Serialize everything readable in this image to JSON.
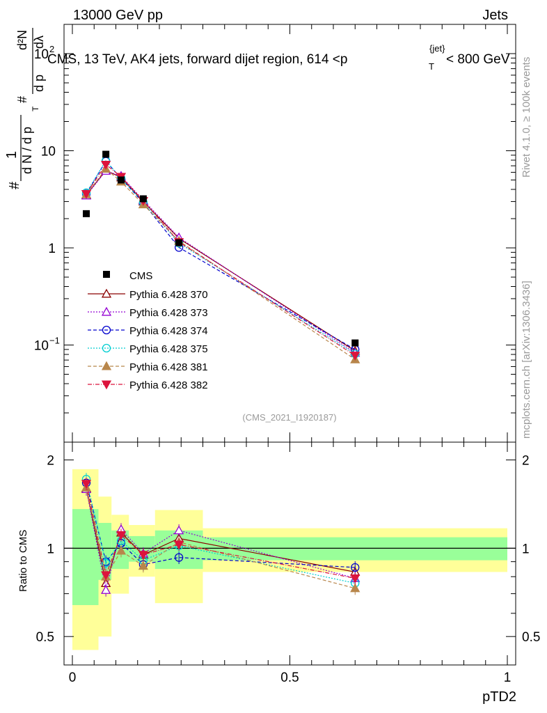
{
  "header": {
    "left": "13000 GeV pp",
    "right": "Jets",
    "title": "CMS, 13 TeV, AK4 jets, forward dijet region, 614 <p",
    "title_sub": "T",
    "title_sup": "{jet}",
    "title_end": "< 800 GeV"
  },
  "side": {
    "rivet": "Rivet 4.1.0, ≥ 100k events",
    "mcplots": "mcplots.cern.ch [arXiv:1306.3436]"
  },
  "watermark": "(CMS_2021_I1920187)",
  "ylabel_main": {
    "hash1": "#",
    "one": "1",
    "dn": "d N / d p",
    "t_sub": "T",
    "hash2": "#",
    "dp": "d p",
    "d2n": "d²N",
    "dlambda": "dλ",
    "hash3": "#"
  },
  "xlabel": "pTD2",
  "ratio_ylabel": "Ratio to CMS",
  "colors": {
    "cms": "#000000",
    "p370": "#8b0000",
    "p373": "#9400d3",
    "p374": "#0000cd",
    "p375": "#00ced1",
    "p381": "#b8864b",
    "p382": "#dc143c",
    "band_inner": "#99ff99",
    "band_outer": "#ffff99"
  },
  "chart_data": {
    "type": "line",
    "title": "CMS, 13 TeV, AK4 jets, forward dijet region, 614 < pT{jet} < 800 GeV",
    "xlabel": "pTD2",
    "ylabel": "1/(dN/dpT) d²N/(dpT dλ)",
    "xlim": [
      0,
      1
    ],
    "ylim_main": [
      0.01,
      200
    ],
    "ylim_ratio": [
      0.4,
      2.3
    ],
    "yscale_main": "log",
    "yscale_ratio": "log",
    "main_ticks": [
      {
        "v": 100,
        "base": "10",
        "exp": "2"
      },
      {
        "v": 10,
        "base": "10",
        "exp": ""
      },
      {
        "v": 1,
        "base": "1",
        "exp": ""
      },
      {
        "v": 0.1,
        "base": "10",
        "exp": "−1"
      }
    ],
    "x_ticks": [
      {
        "v": 0,
        "label": "0"
      },
      {
        "v": 0.5,
        "label": "0.5"
      },
      {
        "v": 1,
        "label": "1"
      }
    ],
    "ratio_ticks": [
      {
        "v": 2,
        "label": "2"
      },
      {
        "v": 1,
        "label": "1"
      },
      {
        "v": 0.5,
        "label": "0.5"
      }
    ],
    "bins": [
      [
        0,
        0.06
      ],
      [
        0.06,
        0.09
      ],
      [
        0.09,
        0.13
      ],
      [
        0.13,
        0.19
      ],
      [
        0.19,
        0.3
      ],
      [
        0.3,
        1.0
      ]
    ],
    "x": [
      0.032,
      0.077,
      0.112,
      0.163,
      0.245,
      0.65
    ],
    "cms": {
      "name": "CMS",
      "values": [
        2.25,
        9.2,
        5.0,
        3.2,
        1.13,
        0.105
      ]
    },
    "band_inner": [
      0.36,
      0.22,
      0.15,
      0.1,
      0.15,
      0.09
    ],
    "band_outer": [
      0.86,
      0.5,
      0.3,
      0.2,
      0.35,
      0.17
    ],
    "series": [
      {
        "name": "Pythia 6.428 370",
        "key": "p370",
        "marker": "triangle-up-open",
        "dash": "",
        "values": [
          3.5,
          6.3,
          5.3,
          3.0,
          1.25,
          0.087
        ],
        "ratio": [
          1.6,
          0.76,
          1.13,
          0.95,
          1.08,
          0.83
        ]
      },
      {
        "name": "Pythia 6.428 373",
        "key": "p373",
        "marker": "triangle-up-open",
        "dash": "2,2",
        "values": [
          3.45,
          6.2,
          5.5,
          3.1,
          1.28,
          0.083
        ],
        "ratio": [
          1.59,
          0.72,
          1.16,
          0.96,
          1.15,
          0.79
        ]
      },
      {
        "name": "Pythia 6.428 374",
        "key": "p374",
        "marker": "circle-open",
        "dash": "5,3",
        "values": [
          3.6,
          7.8,
          5.2,
          2.9,
          1.01,
          0.09
        ],
        "ratio": [
          1.67,
          0.9,
          1.04,
          0.88,
          0.93,
          0.86
        ]
      },
      {
        "name": "Pythia 6.428 375",
        "key": "p375",
        "marker": "circle-open",
        "dash": "2,2",
        "values": [
          3.7,
          7.9,
          5.2,
          2.95,
          1.12,
          0.081
        ],
        "ratio": [
          1.72,
          0.89,
          1.06,
          0.91,
          1.02,
          0.76
        ]
      },
      {
        "name": "Pythia 6.428 381",
        "key": "p381",
        "marker": "triangle-up-filled",
        "dash": "5,3",
        "values": [
          3.55,
          6.5,
          4.8,
          2.8,
          1.18,
          0.071
        ],
        "ratio": [
          1.61,
          0.8,
          0.98,
          0.87,
          1.05,
          0.73
        ]
      },
      {
        "name": "Pythia 6.428 382",
        "key": "p382",
        "marker": "triangle-down-filled",
        "dash": "6,2,1,2",
        "values": [
          3.6,
          7.2,
          5.4,
          3.05,
          1.15,
          0.078
        ],
        "ratio": [
          1.66,
          0.81,
          1.11,
          0.95,
          1.03,
          0.79
        ]
      }
    ]
  }
}
